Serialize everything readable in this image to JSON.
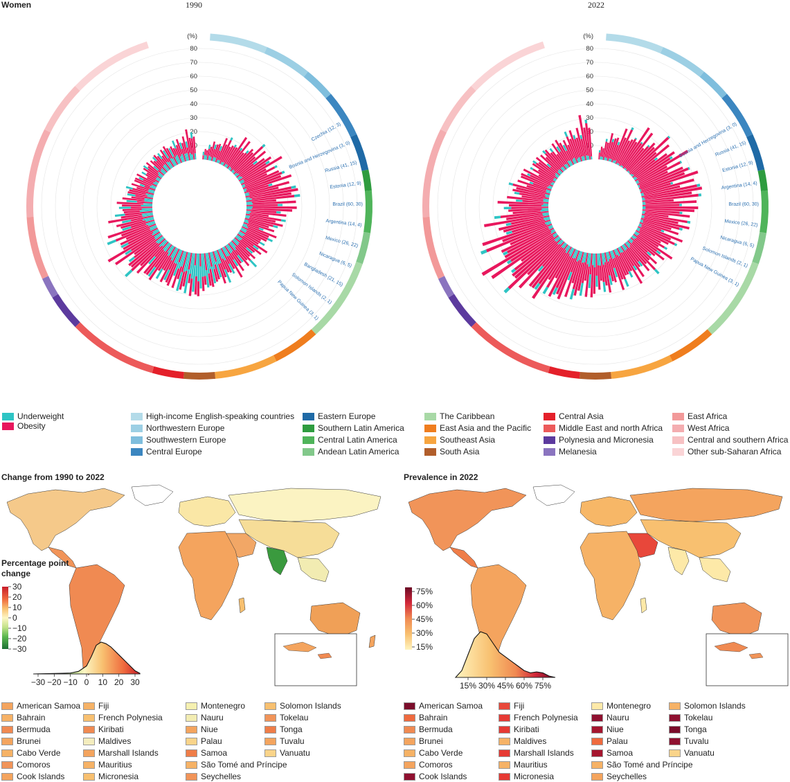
{
  "header": {
    "sex_label": "Women",
    "year_left": "1990",
    "year_right": "2022"
  },
  "chart_data": [
    {
      "type": "circular-bar",
      "title": "1990",
      "axis_unit": "(%)",
      "radial_ticks": [
        "80",
        "70",
        "60",
        "50",
        "40",
        "30",
        "20",
        "10"
      ],
      "series": [
        {
          "name": "Underweight",
          "color": "#2ec4c4"
        },
        {
          "name": "Obesity",
          "color": "#e8175d"
        }
      ],
      "labelled_values": [
        {
          "country": "Czechia",
          "values": "12, 3"
        },
        {
          "country": "Bosnia and Herzegovina",
          "values": "3, 0"
        },
        {
          "country": "Russia",
          "values": "41, 15"
        },
        {
          "country": "Estonia",
          "values": "12, 9"
        },
        {
          "country": "Brazil",
          "values": "60, 30"
        },
        {
          "country": "Argentina",
          "values": "14, 4"
        },
        {
          "country": "Mexico",
          "values": "26, 22"
        },
        {
          "country": "Nicaragua",
          "values": "6, 5"
        },
        {
          "country": "Bangladesh",
          "values": "21, 15"
        },
        {
          "country": "Solomon Islands",
          "values": "2, 1"
        },
        {
          "country": "Papua New Guinea",
          "values": "3, 1"
        }
      ],
      "profile_underweight": [
        3,
        3,
        3,
        3,
        3,
        2,
        2,
        2,
        2,
        2,
        2,
        2,
        3,
        3,
        3,
        2,
        2,
        2,
        3,
        3,
        4,
        4,
        4,
        3,
        3,
        3,
        3,
        3,
        4,
        4,
        4,
        4,
        5,
        5,
        6,
        6,
        6,
        7,
        8,
        9,
        10,
        11,
        12,
        14,
        16,
        18,
        17,
        15,
        13,
        12,
        10,
        9,
        8,
        7,
        7,
        6,
        6,
        6,
        5,
        5,
        5,
        5,
        6,
        6,
        7,
        7,
        8,
        8,
        7,
        6,
        5,
        5,
        4,
        4,
        3,
        3,
        3,
        4,
        4,
        4,
        5,
        5,
        6,
        6,
        6,
        5,
        5,
        5,
        4,
        4
      ],
      "profile_obesity": [
        3,
        6,
        8,
        10,
        12,
        14,
        15,
        17,
        18,
        19,
        20,
        21,
        22,
        23,
        24,
        25,
        26,
        27,
        28,
        30,
        30,
        28,
        26,
        24,
        22,
        20,
        19,
        18,
        17,
        16,
        16,
        15,
        15,
        14,
        14,
        13,
        13,
        13,
        12,
        12,
        11,
        11,
        10,
        10,
        10,
        10,
        11,
        11,
        12,
        13,
        14,
        15,
        16,
        18,
        20,
        22,
        24,
        26,
        27,
        28,
        27,
        25,
        23,
        22,
        20,
        18,
        16,
        15,
        14,
        14,
        13,
        12,
        12,
        11,
        11,
        10,
        10,
        10,
        9,
        9,
        9,
        9,
        8,
        8,
        8,
        9,
        10,
        12,
        13,
        14
      ]
    },
    {
      "type": "circular-bar",
      "title": "2022",
      "axis_unit": "(%)",
      "radial_ticks": [
        "80",
        "70",
        "60",
        "50",
        "40",
        "30",
        "20",
        "10"
      ],
      "series": [
        {
          "name": "Underweight",
          "color": "#2ec4c4"
        },
        {
          "name": "Obesity",
          "color": "#e8175d"
        }
      ],
      "labelled_values": [
        {
          "country": "Bosnia and Herzegovina",
          "values": "3, 0"
        },
        {
          "country": "Russia",
          "values": "41, 15"
        },
        {
          "country": "Estonia",
          "values": "12, 9"
        },
        {
          "country": "Argentina",
          "values": "14, 4"
        },
        {
          "country": "Brazil",
          "values": "60, 30"
        },
        {
          "country": "Mexico",
          "values": "26, 22"
        },
        {
          "country": "Nicaragua",
          "values": "6, 5"
        },
        {
          "country": "Solomon Islands",
          "values": "2, 1"
        },
        {
          "country": "Papua New Guinea",
          "values": "3, 1"
        }
      ],
      "profile_underweight": [
        2,
        2,
        2,
        2,
        2,
        2,
        1,
        1,
        1,
        1,
        1,
        1,
        2,
        2,
        2,
        1,
        1,
        1,
        2,
        2,
        2,
        2,
        2,
        2,
        2,
        2,
        2,
        2,
        2,
        2,
        3,
        3,
        3,
        3,
        4,
        4,
        4,
        4,
        5,
        5,
        6,
        6,
        7,
        8,
        8,
        9,
        9,
        8,
        7,
        7,
        6,
        6,
        5,
        5,
        4,
        4,
        4,
        4,
        3,
        3,
        3,
        3,
        4,
        4,
        4,
        4,
        5,
        5,
        4,
        4,
        3,
        3,
        3,
        3,
        2,
        2,
        2,
        3,
        3,
        3,
        3,
        3,
        4,
        4,
        4,
        3,
        3,
        3,
        3,
        2
      ],
      "profile_obesity": [
        5,
        10,
        13,
        16,
        18,
        20,
        22,
        24,
        25,
        26,
        27,
        28,
        29,
        30,
        31,
        32,
        33,
        34,
        35,
        36,
        35,
        33,
        31,
        30,
        28,
        27,
        26,
        25,
        24,
        23,
        22,
        22,
        21,
        21,
        20,
        20,
        19,
        19,
        18,
        18,
        18,
        17,
        17,
        17,
        17,
        18,
        19,
        20,
        22,
        24,
        26,
        28,
        30,
        32,
        34,
        36,
        38,
        40,
        42,
        44,
        42,
        40,
        38,
        36,
        34,
        31,
        28,
        26,
        24,
        23,
        22,
        21,
        20,
        19,
        18,
        17,
        16,
        16,
        15,
        15,
        15,
        15,
        14,
        14,
        15,
        16,
        18,
        20,
        22,
        24
      ]
    },
    {
      "type": "density",
      "title": "Change from 1990 to 2022",
      "x_ticks": [
        "−30",
        "−20",
        "−10",
        "0",
        "10",
        "20",
        "30"
      ],
      "xlim": [
        -33,
        33
      ],
      "curve_x": [
        -33,
        -30,
        -25,
        -20,
        -15,
        -10,
        -5,
        0,
        3,
        6,
        9,
        12,
        15,
        18,
        21,
        24,
        27,
        30,
        33
      ],
      "curve_y": [
        0,
        0.005,
        0.01,
        0.015,
        0.02,
        0.03,
        0.08,
        0.25,
        0.55,
        0.9,
        1.0,
        0.95,
        0.85,
        0.7,
        0.55,
        0.4,
        0.25,
        0.1,
        0.02
      ]
    },
    {
      "type": "density",
      "title": "Prevalence in 2022",
      "x_ticks": [
        "15%",
        "30%",
        "45%",
        "60%",
        "75%"
      ],
      "xlim": [
        5,
        85
      ],
      "curve_x": [
        5,
        10,
        15,
        20,
        25,
        30,
        35,
        40,
        45,
        50,
        55,
        60,
        65,
        70,
        75,
        80,
        85
      ],
      "curve_y": [
        0,
        0.15,
        0.5,
        0.85,
        1.0,
        0.95,
        0.75,
        0.55,
        0.45,
        0.35,
        0.25,
        0.15,
        0.1,
        0.12,
        0.1,
        0.03,
        0
      ]
    }
  ],
  "legend": {
    "series": [
      {
        "label": "Underweight",
        "color": "#2ec4c4"
      },
      {
        "label": "Obesity",
        "color": "#e8175d"
      }
    ],
    "regions_col1": [
      {
        "label": "High-income English-speaking countries",
        "color": "#b3dbe9"
      },
      {
        "label": "Northwestern Europe",
        "color": "#9ccfe4"
      },
      {
        "label": "Southwestern Europe",
        "color": "#7fbedd"
      },
      {
        "label": "Central Europe",
        "color": "#3b86c0"
      }
    ],
    "regions_col2": [
      {
        "label": "Eastern Europe",
        "color": "#1f6aa6"
      },
      {
        "label": "Southern Latin America",
        "color": "#2e9c3f"
      },
      {
        "label": "Central Latin America",
        "color": "#4fb45a"
      },
      {
        "label": "Andean Latin America",
        "color": "#82c88a"
      }
    ],
    "regions_col3": [
      {
        "label": "The Caribbean",
        "color": "#a8d9a6"
      },
      {
        "label": "East Asia and the Pacific",
        "color": "#ef7d1e"
      },
      {
        "label": "Southeast Asia",
        "color": "#f7a540"
      },
      {
        "label": "South Asia",
        "color": "#b15e2b"
      }
    ],
    "regions_col4": [
      {
        "label": "Central Asia",
        "color": "#e4202a"
      },
      {
        "label": "Middle East and north Africa",
        "color": "#ec5a5a"
      },
      {
        "label": "Polynesia and Micronesia",
        "color": "#5c3a9e"
      },
      {
        "label": "Melanesia",
        "color": "#8a74bf"
      }
    ],
    "regions_col5": [
      {
        "label": "East Africa",
        "color": "#f29999"
      },
      {
        "label": "West Africa",
        "color": "#f4adb0"
      },
      {
        "label": "Central and southern Africa",
        "color": "#f7c1c3"
      },
      {
        "label": "Other sub-Saharan Africa",
        "color": "#fad4d6"
      }
    ]
  },
  "map_change": {
    "title": "Change from 1990 to 2022",
    "scale_title_1": "Percentage point",
    "scale_title_2": "change",
    "scale_ticks": [
      "30",
      "20",
      "10",
      "0",
      "−10",
      "−20",
      "−30"
    ],
    "countries": [
      [
        {
          "name": "American Samoa",
          "color": "#f4a45e"
        },
        {
          "name": "Bahrain",
          "color": "#f6b266"
        },
        {
          "name": "Bermuda",
          "color": "#f08a52"
        },
        {
          "name": "Brunei",
          "color": "#f4a45e"
        },
        {
          "name": "Cabo Verde",
          "color": "#f6b266"
        },
        {
          "name": "Comoros",
          "color": "#f19459"
        },
        {
          "name": "Cook Islands",
          "color": "#f4a45e"
        }
      ],
      [
        {
          "name": "Fiji",
          "color": "#f6b266"
        },
        {
          "name": "French Polynesia",
          "color": "#f8c070"
        },
        {
          "name": "Kiribati",
          "color": "#f08a52"
        },
        {
          "name": "Maldives",
          "color": "#f4edbe"
        },
        {
          "name": "Marshall Islands",
          "color": "#f4a45e"
        },
        {
          "name": "Mauritius",
          "color": "#f6b266"
        },
        {
          "name": "Micronesia",
          "color": "#f8c070"
        }
      ],
      [
        {
          "name": "Montenegro",
          "color": "#f5f0b0"
        },
        {
          "name": "Nauru",
          "color": "#f2ecb2"
        },
        {
          "name": "Niue",
          "color": "#f4a45e"
        },
        {
          "name": "Palau",
          "color": "#fad48a"
        },
        {
          "name": "Samoa",
          "color": "#ef7d48"
        },
        {
          "name": "São Tomé and Príncipe",
          "color": "#f6b266"
        },
        {
          "name": "Seychelles",
          "color": "#f19459"
        }
      ],
      [
        {
          "name": "Solomon Islands",
          "color": "#f8c070"
        },
        {
          "name": "Tokelau",
          "color": "#f19459"
        },
        {
          "name": "Tonga",
          "color": "#ef7d48"
        },
        {
          "name": "Tuvalu",
          "color": "#f4a45e"
        },
        {
          "name": "Vanuatu",
          "color": "#fad48a"
        }
      ]
    ]
  },
  "map_prev": {
    "title": "Prevalence in 2022",
    "scale_ticks": [
      "75%",
      "60%",
      "45%",
      "30%",
      "15%"
    ],
    "countries": [
      [
        {
          "name": "American Samoa",
          "color": "#7a0c2a"
        },
        {
          "name": "Bahrain",
          "color": "#ef6a3e"
        },
        {
          "name": "Bermuda",
          "color": "#f08a52"
        },
        {
          "name": "Brunei",
          "color": "#f4a45e"
        },
        {
          "name": "Cabo Verde",
          "color": "#f6b266"
        },
        {
          "name": "Comoros",
          "color": "#f4a45e"
        },
        {
          "name": "Cook Islands",
          "color": "#8f1030"
        }
      ],
      [
        {
          "name": "Fiji",
          "color": "#e8473a"
        },
        {
          "name": "French Polynesia",
          "color": "#e63a34"
        },
        {
          "name": "Kiribati",
          "color": "#e63a34"
        },
        {
          "name": "Maldives",
          "color": "#f6b266"
        },
        {
          "name": "Marshall Islands",
          "color": "#e63a34"
        },
        {
          "name": "Mauritius",
          "color": "#f6b266"
        },
        {
          "name": "Micronesia",
          "color": "#e63a34"
        }
      ],
      [
        {
          "name": "Montenegro",
          "color": "#fde9a8"
        },
        {
          "name": "Nauru",
          "color": "#8f1030"
        },
        {
          "name": "Niue",
          "color": "#a5162f"
        },
        {
          "name": "Palau",
          "color": "#ef6a3e"
        },
        {
          "name": "Samoa",
          "color": "#a5162f"
        },
        {
          "name": "São Tomé and Príncipe",
          "color": "#f6b266"
        },
        {
          "name": "Seychelles",
          "color": "#f4a45e"
        }
      ],
      [
        {
          "name": "Solomon Islands",
          "color": "#f6b266"
        },
        {
          "name": "Tokelau",
          "color": "#8f1030"
        },
        {
          "name": "Tonga",
          "color": "#7a0c2a"
        },
        {
          "name": "Tuvalu",
          "color": "#8f1030"
        },
        {
          "name": "Vanuatu",
          "color": "#fad48a"
        }
      ]
    ]
  },
  "colors": {
    "underweight": "#2ec4c4",
    "obesity": "#e8175d",
    "land_default": "#f4a45e"
  }
}
